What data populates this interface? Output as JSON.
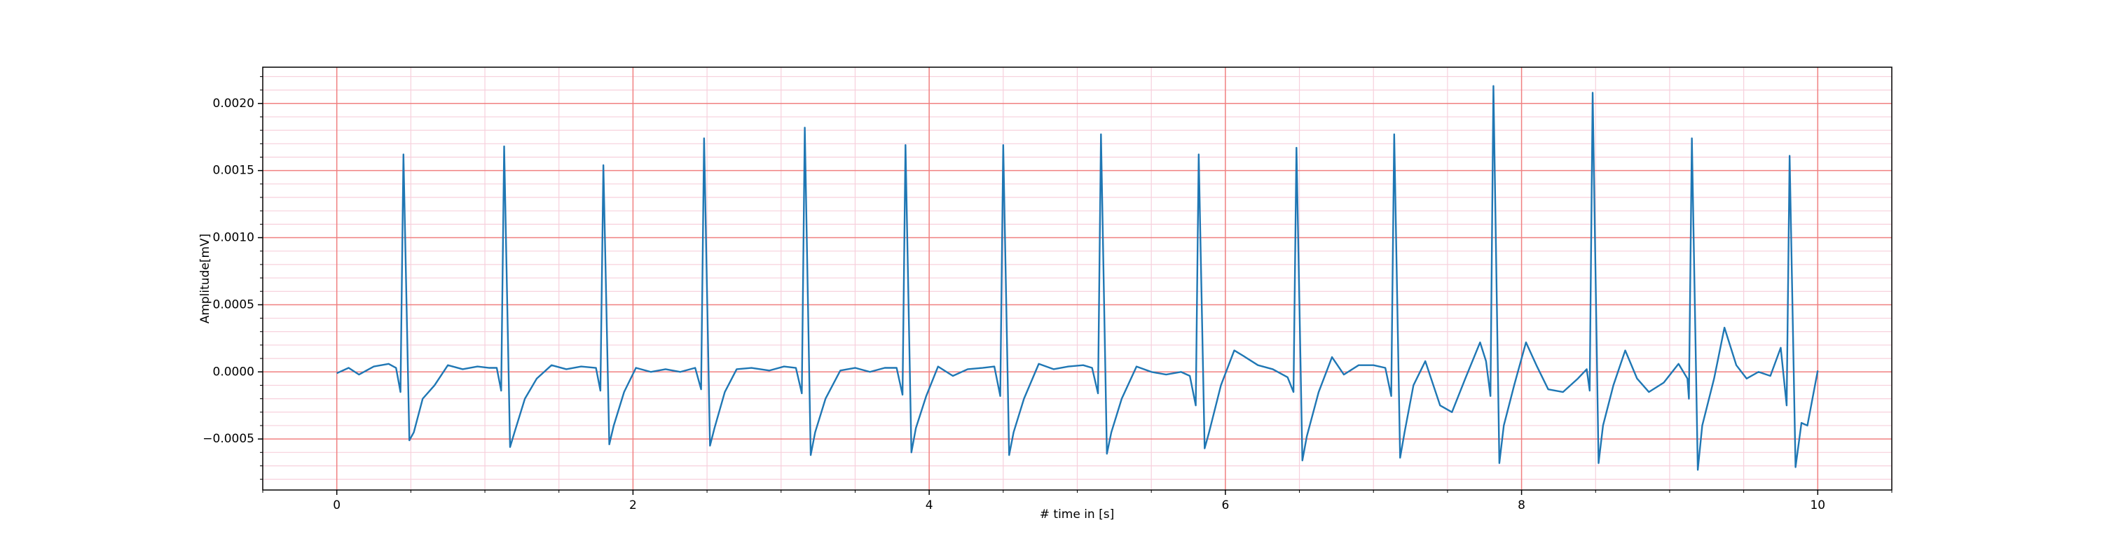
{
  "chart_data": {
    "type": "line",
    "xlabel": "# time in [s]",
    "ylabel": "Amplitude[mV]",
    "color": "#1f77b4",
    "grid": true,
    "grid_color": "#f08080",
    "minor_grid_color": "#f7d0dc",
    "xlim": [
      -0.5,
      10.5
    ],
    "ylim": [
      -0.00088,
      0.00227
    ],
    "xticks": [
      0,
      2,
      4,
      6,
      8,
      10
    ],
    "yticks": [
      {
        "value": -0.0005,
        "label": "−0.0005"
      },
      {
        "value": 0,
        "label": "0.0000"
      },
      {
        "value": 0.0005,
        "label": "0.0005"
      },
      {
        "value": 0.001,
        "label": "0.0010"
      },
      {
        "value": 0.0015,
        "label": "0.0015"
      },
      {
        "value": 0.002,
        "label": "0.0020"
      }
    ],
    "xminorticks": [
      -0.5,
      0.5,
      1,
      1.5,
      2.5,
      3,
      3.5,
      4.5,
      5,
      5.5,
      6.5,
      7,
      7.5,
      8.5,
      9,
      9.5,
      10.5
    ],
    "yminorticks": [
      -0.0008,
      -0.0007,
      -0.0006,
      -0.0004,
      -0.0003,
      -0.0002,
      -0.0001,
      0.0001,
      0.0002,
      0.0003,
      0.0004,
      0.0006,
      0.0007,
      0.0008,
      0.0009,
      0.0011,
      0.0012,
      0.0013,
      0.0014,
      0.0016,
      0.0017,
      0.0018,
      0.0019,
      0.0021,
      0.0022
    ],
    "x": [
      0,
      0.08,
      0.15,
      0.25,
      0.35,
      0.4,
      0.43,
      0.45,
      0.49,
      0.52,
      0.58,
      0.66,
      0.75,
      0.85,
      0.95,
      1.03,
      1.08,
      1.11,
      1.13,
      1.17,
      1.2,
      1.27,
      1.35,
      1.45,
      1.55,
      1.65,
      1.75,
      1.78,
      1.8,
      1.84,
      1.87,
      1.94,
      2.02,
      2.12,
      2.22,
      2.32,
      2.42,
      2.46,
      2.48,
      2.52,
      2.55,
      2.62,
      2.7,
      2.8,
      2.92,
      3.02,
      3.1,
      3.14,
      3.16,
      3.2,
      3.23,
      3.3,
      3.4,
      3.5,
      3.6,
      3.7,
      3.78,
      3.82,
      3.84,
      3.88,
      3.91,
      3.98,
      4.06,
      4.16,
      4.26,
      4.36,
      4.44,
      4.48,
      4.5,
      4.54,
      4.57,
      4.64,
      4.74,
      4.84,
      4.94,
      5.04,
      5.1,
      5.14,
      5.16,
      5.2,
      5.23,
      5.3,
      5.4,
      5.5,
      5.6,
      5.7,
      5.76,
      5.8,
      5.82,
      5.86,
      5.89,
      5.97,
      6.06,
      6.12,
      6.22,
      6.32,
      6.42,
      6.46,
      6.48,
      6.52,
      6.55,
      6.63,
      6.72,
      6.8,
      6.9,
      7.0,
      7.08,
      7.12,
      7.14,
      7.18,
      7.21,
      7.27,
      7.35,
      7.45,
      7.53,
      7.62,
      7.72,
      7.76,
      7.79,
      7.81,
      7.85,
      7.88,
      7.95,
      8.03,
      8.1,
      8.18,
      8.28,
      8.38,
      8.44,
      8.46,
      8.48,
      8.52,
      8.55,
      8.62,
      8.7,
      8.78,
      8.86,
      8.96,
      9.06,
      9.12,
      9.13,
      9.15,
      9.19,
      9.22,
      9.3,
      9.37,
      9.45,
      9.52,
      9.6,
      9.68,
      9.75,
      9.79,
      9.81,
      9.85,
      9.89,
      9.93,
      10.0
    ],
    "values": [
      -1e-05,
      3e-05,
      -2e-05,
      4e-05,
      6e-05,
      3e-05,
      -0.00015,
      0.00162,
      -0.00051,
      -0.00045,
      -0.0002,
      -0.0001,
      5e-05,
      2e-05,
      4e-05,
      3e-05,
      3e-05,
      -0.00014,
      0.00168,
      -0.00056,
      -0.00045,
      -0.0002,
      -5e-05,
      5e-05,
      2e-05,
      4e-05,
      3e-05,
      -0.00014,
      0.00154,
      -0.00054,
      -0.0004,
      -0.00015,
      3e-05,
      0.0,
      2e-05,
      0.0,
      3e-05,
      -0.00013,
      0.00174,
      -0.00055,
      -0.00042,
      -0.00015,
      2e-05,
      3e-05,
      1e-05,
      4e-05,
      3e-05,
      -0.00016,
      0.00182,
      -0.00062,
      -0.00045,
      -0.0002,
      1e-05,
      3e-05,
      0.0,
      3e-05,
      3e-05,
      -0.00017,
      0.00169,
      -0.0006,
      -0.00042,
      -0.00018,
      4e-05,
      -3e-05,
      2e-05,
      3e-05,
      4e-05,
      -0.00018,
      0.00169,
      -0.00062,
      -0.00045,
      -0.0002,
      6e-05,
      2e-05,
      4e-05,
      5e-05,
      3e-05,
      -0.00016,
      0.00177,
      -0.00061,
      -0.00045,
      -0.0002,
      4e-05,
      0.0,
      -2e-05,
      0.0,
      -3e-05,
      -0.00025,
      0.00162,
      -0.00057,
      -0.00045,
      -0.0001,
      0.00016,
      0.00012,
      5e-05,
      2e-05,
      -4e-05,
      -0.00015,
      0.00167,
      -0.00066,
      -0.00048,
      -0.00015,
      0.00011,
      -2e-05,
      5e-05,
      5e-05,
      3e-05,
      -0.00018,
      0.00177,
      -0.00064,
      -0.00045,
      -0.0001,
      8e-05,
      -0.00025,
      -0.0003,
      -5e-05,
      0.00022,
      8e-05,
      -0.00018,
      0.00213,
      -0.00068,
      -0.0004,
      -0.0001,
      0.00022,
      5e-05,
      -0.00013,
      -0.00015,
      -5e-05,
      2e-05,
      -0.00014,
      0.00208,
      -0.00068,
      -0.0004,
      -0.0001,
      0.00016,
      -5e-05,
      -0.00015,
      -8e-05,
      6e-05,
      -5e-05,
      -0.0002,
      0.00174,
      -0.00073,
      -0.0004,
      -5e-05,
      0.00033,
      5e-05,
      -5e-05,
      0.0,
      -3e-05,
      0.00018,
      -0.00025,
      0.00161,
      -0.00071,
      -0.00038,
      -0.0004,
      1e-05
    ]
  }
}
